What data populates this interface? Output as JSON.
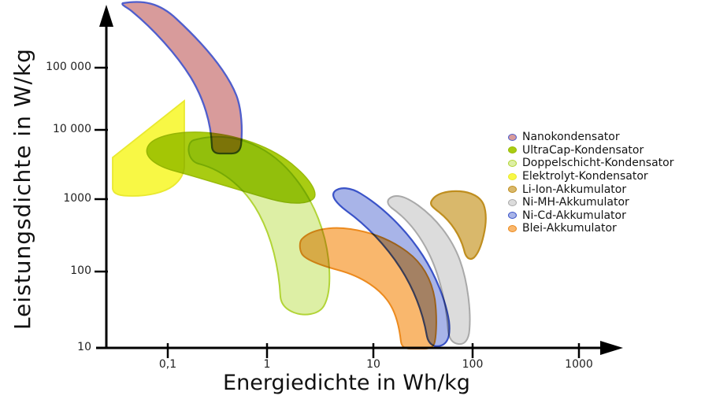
{
  "chart_data": {
    "type": "area",
    "title": "",
    "xlabel": "Energiedichte in Wh/kg",
    "ylabel": "Leistungsdichte in W/kg",
    "x_scale": "log",
    "y_scale": "log",
    "x_ticks": [
      "0,1",
      "1",
      "10",
      "100",
      "1000"
    ],
    "y_ticks": [
      "10",
      "100",
      "1000",
      "10 000",
      "100 000"
    ],
    "x_range_Wh_per_kg": [
      0.03,
      2000
    ],
    "y_range_W_per_kg": [
      10,
      700000
    ],
    "grid": false,
    "legend_position": "right",
    "series": [
      {
        "key": "nanokondensator",
        "label": "Nanokondensator",
        "fill": "#d89b9b",
        "stroke": "#4f5ecc",
        "energy_Wh_per_kg": [
          0.03,
          0.5
        ],
        "power_W_per_kg": [
          5000,
          700000
        ]
      },
      {
        "key": "ultracap",
        "label": "UltraCap-Kondensator",
        "fill": "#a9cc12",
        "stroke": "#9abb0a",
        "energy_Wh_per_kg": [
          0.06,
          3
        ],
        "power_W_per_kg": [
          1300,
          13000
        ]
      },
      {
        "key": "doppelschicht",
        "label": "Doppelschicht-Kondensator",
        "fill": "#ddefa5",
        "stroke": "#b2d437",
        "energy_Wh_per_kg": [
          0.15,
          4
        ],
        "power_W_per_kg": [
          40,
          10000
        ]
      },
      {
        "key": "elektrolyt",
        "label": "Elektrolyt-Kondensator",
        "fill": "#f8f845",
        "stroke": "#e9e930",
        "energy_Wh_per_kg": [
          0.03,
          0.15
        ],
        "power_W_per_kg": [
          1600,
          35000
        ]
      },
      {
        "key": "li-ion",
        "label": "Li-Ion-Akkumulator",
        "fill": "#d9b86b",
        "stroke": "#bf8e1f",
        "energy_Wh_per_kg": [
          35,
          130
        ],
        "power_W_per_kg": [
          230,
          2000
        ]
      },
      {
        "key": "ni-mh",
        "label": "Ni-MH-Akkumulator",
        "fill": "#dcdcdc",
        "stroke": "#a9a9a9",
        "energy_Wh_per_kg": [
          14,
          90
        ],
        "power_W_per_kg": [
          10,
          1700
        ]
      },
      {
        "key": "ni-cd",
        "label": "Ni-Cd-Akkumulator",
        "fill": "#a8b4e8",
        "stroke": "#3a53c8",
        "energy_Wh_per_kg": [
          4,
          57
        ],
        "power_W_per_kg": [
          10,
          2200
        ]
      },
      {
        "key": "blei",
        "label": "Blei-Akkumulator",
        "fill": "#f9b76d",
        "stroke": "#ec8a1e",
        "energy_Wh_per_kg": [
          2,
          41
        ],
        "power_W_per_kg": [
          10,
          600
        ]
      }
    ]
  }
}
